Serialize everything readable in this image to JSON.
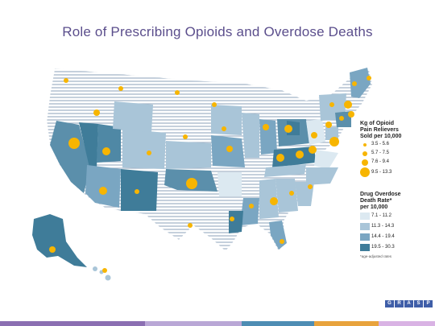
{
  "title": "Role of Prescribing Opioids and Overdose Deaths",
  "legend": {
    "sales_title_1": "Kg of Opioid",
    "sales_title_2": "Pain Relievers",
    "sales_title_3": "Sold per 10,000",
    "sales_items": [
      {
        "label": "3.5 - 5.6"
      },
      {
        "label": "5.7 - 7.5"
      },
      {
        "label": "7.6 - 9.4"
      },
      {
        "label": "9.5 - 13.3"
      }
    ],
    "death_title_1": "Drug Overdose",
    "death_title_2": "Death Rate*",
    "death_title_3": "per 10,000",
    "death_items": [
      {
        "label": "7.1 - 11.2",
        "color": "#dce9f1"
      },
      {
        "label": "11.3 - 14.3",
        "color": "#a9c5d8"
      },
      {
        "label": "14.4 - 19.4",
        "color": "#7aa6c2"
      },
      {
        "label": "19.5 - 30.3",
        "color": "#3f7c99"
      }
    ],
    "footnote": "*age-adjusted rates"
  },
  "logo_letters": [
    "G",
    "R",
    "A",
    "S",
    "P"
  ],
  "colors": {
    "title": "#5b4e8c",
    "dot": "#f7b500",
    "bar": [
      "#8b6fb2",
      "#b9a7d6",
      "#4e8db4",
      "#e8a33c",
      "#d9b3e4"
    ]
  }
}
